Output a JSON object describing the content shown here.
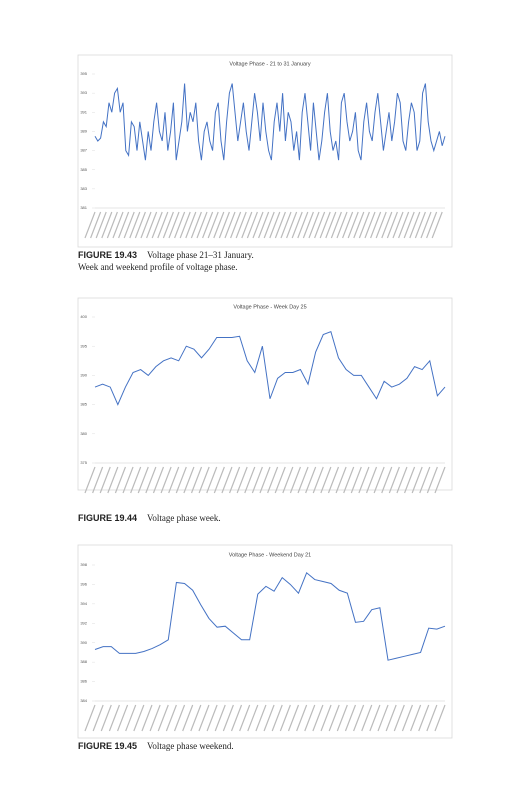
{
  "figures": [
    {
      "label": "FIGURE 19.43",
      "caption": "Voltage phase 21–31 January."
    },
    {
      "label": "FIGURE 19.44",
      "caption": "Voltage phase week."
    },
    {
      "label": "FIGURE 19.45",
      "caption": "Voltage phase weekend."
    }
  ],
  "section_text": "Week and weekend profile of voltage phase.",
  "chart_data": [
    {
      "type": "line",
      "title": "Voltage Phase - 21 to 31 January",
      "color": "#4472c4",
      "grid": false,
      "ylim": [
        381,
        395
      ],
      "yticks": [
        381,
        383,
        385,
        387,
        389,
        391,
        393,
        395
      ],
      "values": [
        388.5,
        388,
        388.3,
        390,
        389.5,
        392,
        391,
        393,
        393.5,
        391,
        392,
        387,
        386.5,
        390,
        389.5,
        387,
        390,
        388,
        386,
        389,
        387,
        390,
        392,
        389,
        388,
        391,
        387,
        389,
        392,
        386,
        388,
        390,
        394,
        389,
        391,
        390,
        392,
        388,
        386,
        389,
        390,
        388,
        387,
        391,
        392,
        388,
        386,
        390,
        393,
        394,
        391,
        388,
        390,
        392,
        389,
        387,
        390,
        393,
        391,
        388,
        392,
        389,
        387,
        386,
        390,
        392,
        389,
        393,
        388,
        391,
        390,
        387,
        389,
        386,
        391,
        393,
        390,
        387,
        392,
        389,
        386,
        388,
        391,
        393,
        389,
        387,
        388,
        386,
        392,
        393,
        390,
        388,
        389,
        391,
        387,
        386,
        390,
        392,
        389,
        388,
        391,
        393,
        390,
        387,
        389,
        391,
        388,
        390,
        393,
        392,
        388,
        387,
        390,
        392,
        391,
        387,
        388,
        393,
        394,
        390,
        388,
        387,
        388,
        389,
        387.5,
        388.5
      ]
    },
    {
      "type": "line",
      "title": "Voltage Phase - Week Day 25",
      "color": "#4472c4",
      "grid": false,
      "ylim": [
        375,
        400
      ],
      "yticks": [
        375,
        380,
        385,
        390,
        395,
        400
      ],
      "values": [
        388,
        388.5,
        388,
        385,
        388,
        390.5,
        391,
        390,
        391.5,
        392.5,
        393,
        392.5,
        395,
        394.5,
        393,
        394.5,
        396.5,
        396.5,
        396.5,
        396.7,
        392.5,
        390.5,
        395,
        386,
        389.5,
        390.5,
        390.5,
        391,
        388.5,
        394,
        397,
        397.5,
        393,
        391,
        390,
        390,
        388,
        386,
        389,
        388,
        388.5,
        389.5,
        391.5,
        391,
        392.5,
        386.5,
        388
      ]
    },
    {
      "type": "line",
      "title": "Voltage Phase - Weekend Day 21",
      "color": "#4472c4",
      "grid": false,
      "ylim": [
        384,
        398
      ],
      "yticks": [
        384,
        386,
        388,
        390,
        392,
        394,
        396,
        398
      ],
      "values": [
        389.3,
        389.6,
        389.6,
        388.9,
        388.9,
        388.9,
        389.1,
        389.4,
        389.8,
        390.3,
        396.2,
        396.1,
        395.4,
        393.9,
        392.5,
        391.6,
        391.7,
        391,
        390.3,
        390.3,
        395,
        395.8,
        395.3,
        396.7,
        396,
        395.1,
        397.2,
        396.5,
        396.3,
        396.1,
        395.4,
        395.1,
        392.1,
        392.2,
        393.4,
        393.6,
        388.2,
        388.4,
        388.6,
        388.8,
        389,
        391.5,
        391.4,
        391.7
      ]
    }
  ]
}
